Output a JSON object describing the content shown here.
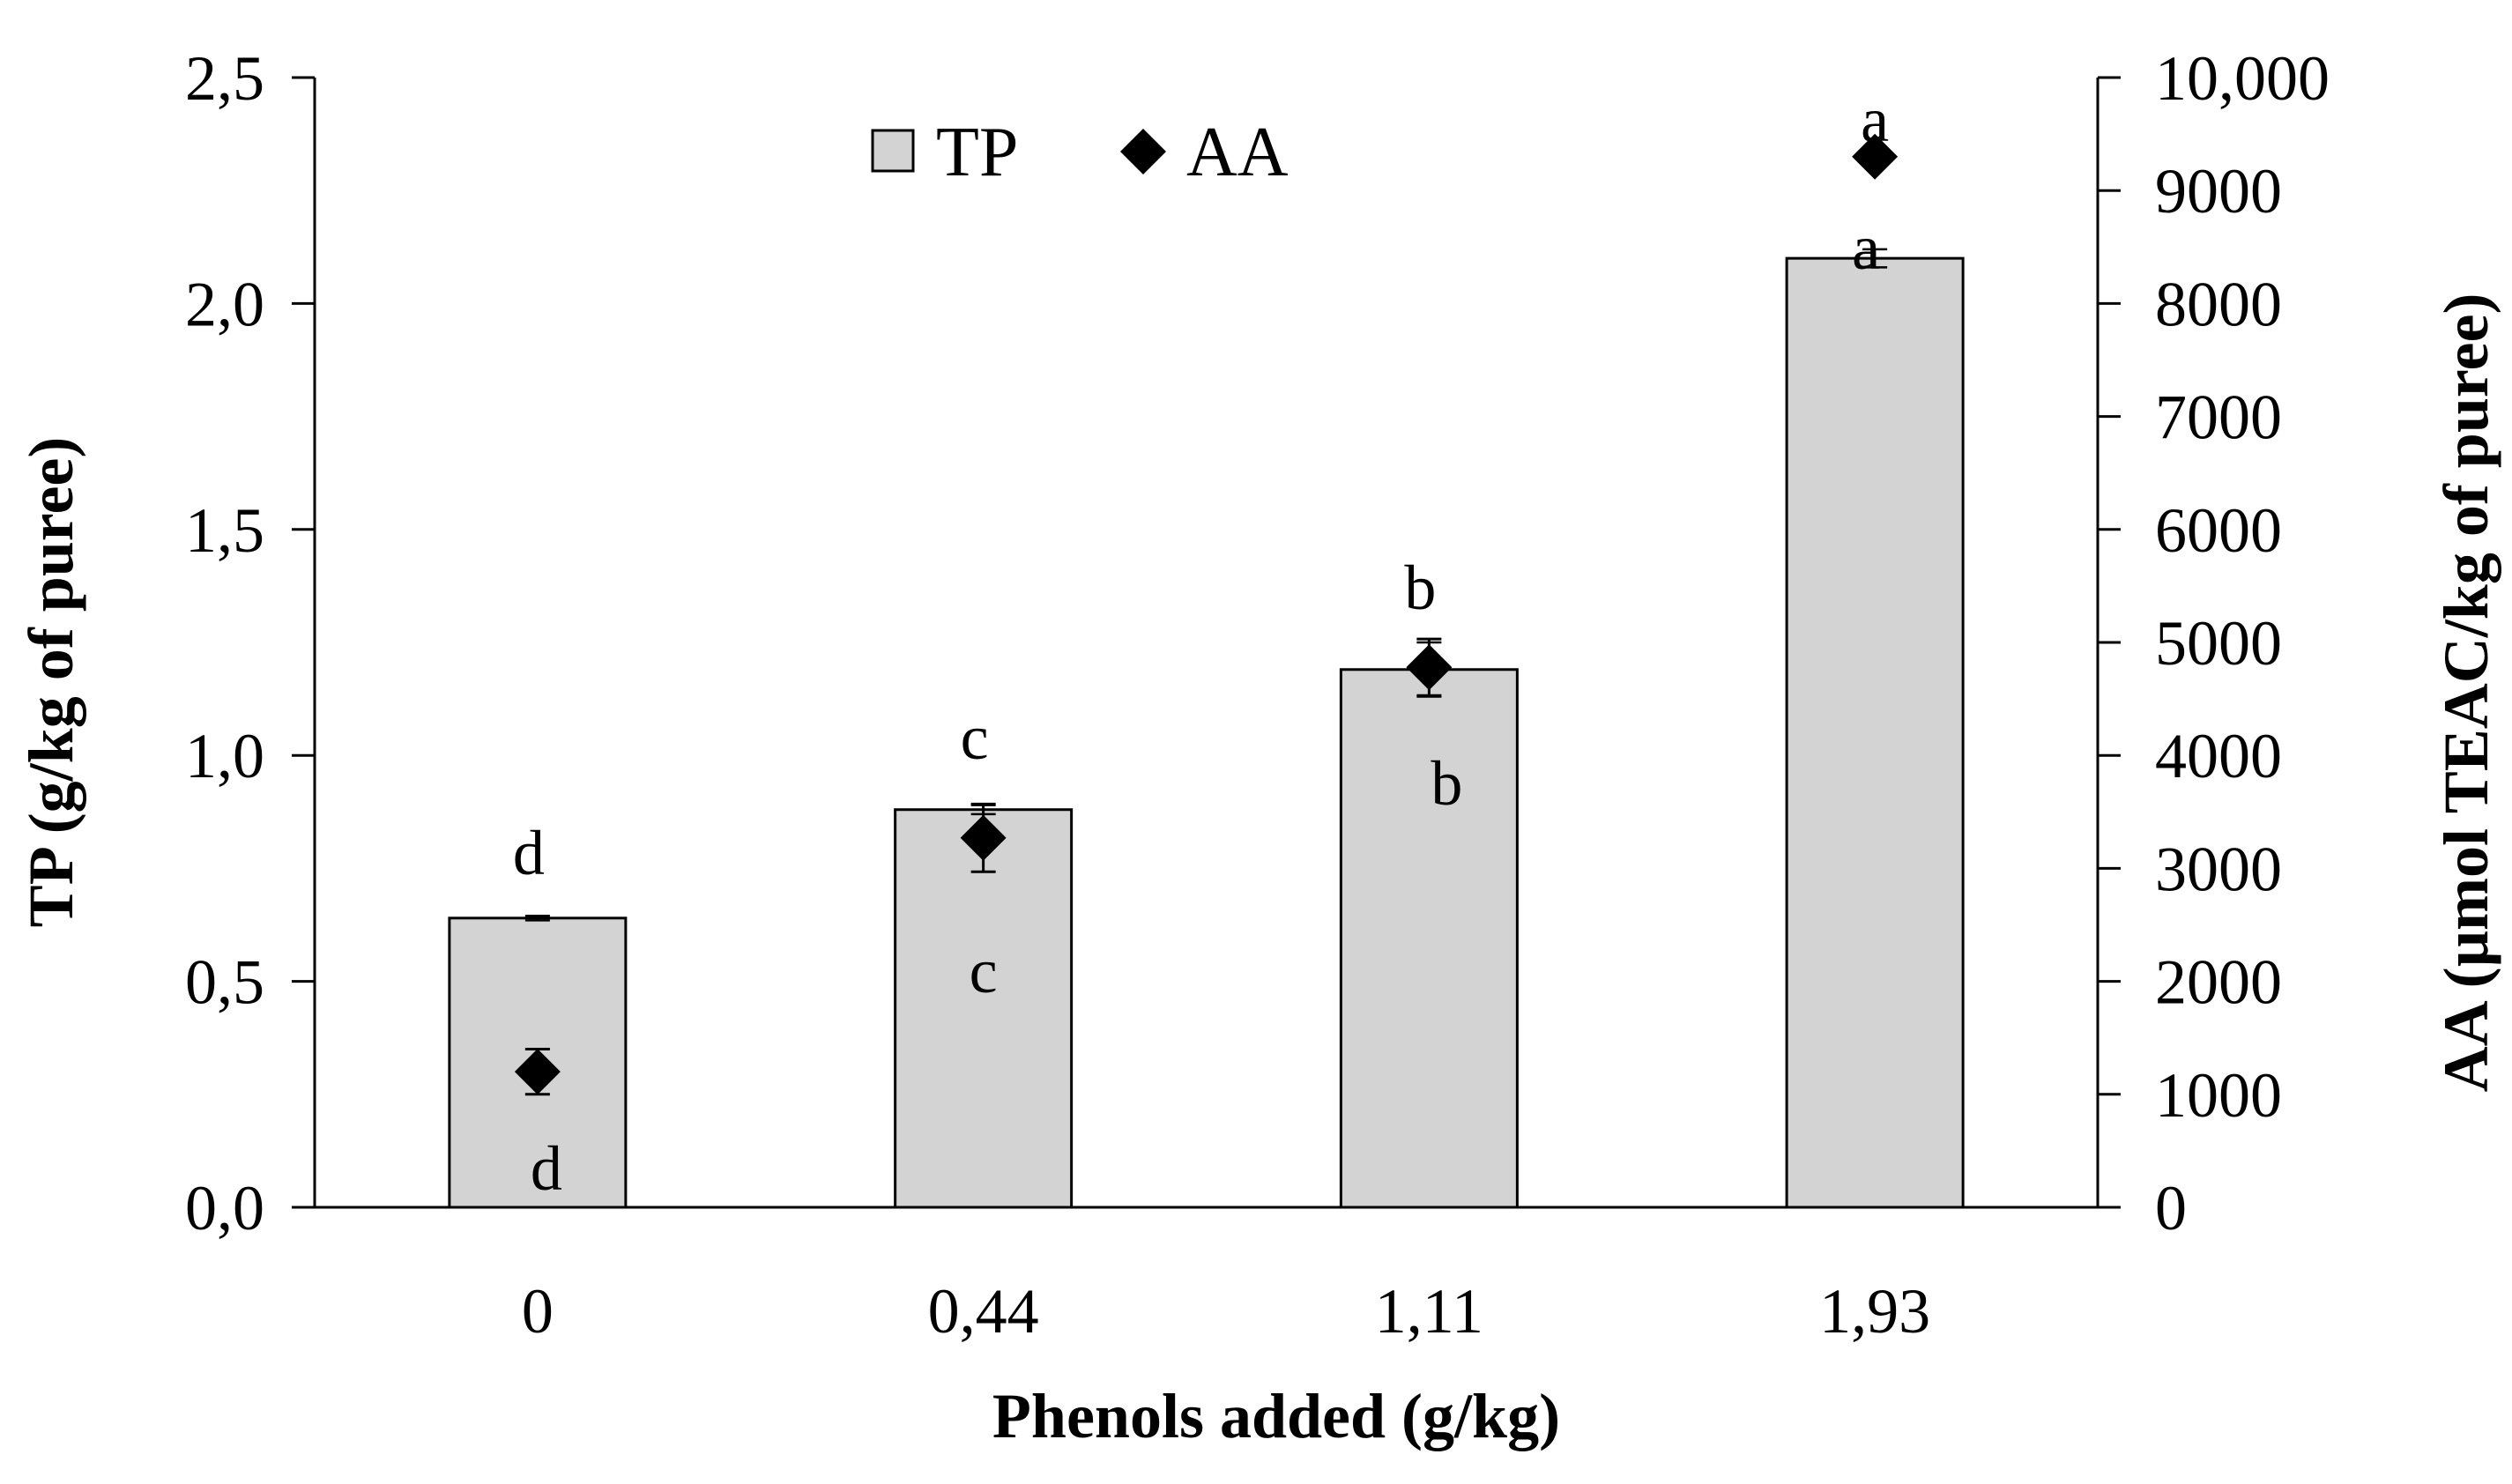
{
  "chart_data": {
    "type": "bar",
    "title": "",
    "xlabel": "Phenols added (g/kg)",
    "ylabel": "TP (g/kg of puree)",
    "y2label": "AA (µmol TEAC/kg of puree)",
    "categories": [
      "0",
      "0,44",
      "1,11",
      "1,93"
    ],
    "ylim": [
      0,
      2.5
    ],
    "y2lim": [
      0,
      10000
    ],
    "yticks": [
      0,
      0.5,
      1.0,
      1.5,
      2.0,
      2.5
    ],
    "ytick_labels": [
      "0,0",
      "0,5",
      "1,0",
      "1,5",
      "2,0",
      "2,5"
    ],
    "y2ticks": [
      0,
      1000,
      2000,
      3000,
      4000,
      5000,
      6000,
      7000,
      8000,
      9000,
      10000
    ],
    "y2tick_labels": [
      "0",
      "1000",
      "2000",
      "3000",
      "4000",
      "5000",
      "6000",
      "7000",
      "8000",
      "9000",
      "10,000"
    ],
    "legend_position": "top-center",
    "series": [
      {
        "name": "TP",
        "kind": "bar",
        "axis": "left",
        "color": "#d3d3d3",
        "values": [
          0.64,
          0.88,
          1.19,
          2.1
        ],
        "errors": [
          0.005,
          0.01,
          0.06,
          0.02
        ],
        "letters": [
          "d",
          "c",
          "b",
          "a"
        ]
      },
      {
        "name": "AA",
        "kind": "scatter",
        "marker": "diamond",
        "axis": "right",
        "color": "#000000",
        "values": [
          1200,
          3270,
          4780,
          9300
        ],
        "errors": [
          200,
          300,
          250,
          80
        ],
        "letters": [
          "d",
          "c",
          "b",
          "a"
        ]
      }
    ]
  }
}
